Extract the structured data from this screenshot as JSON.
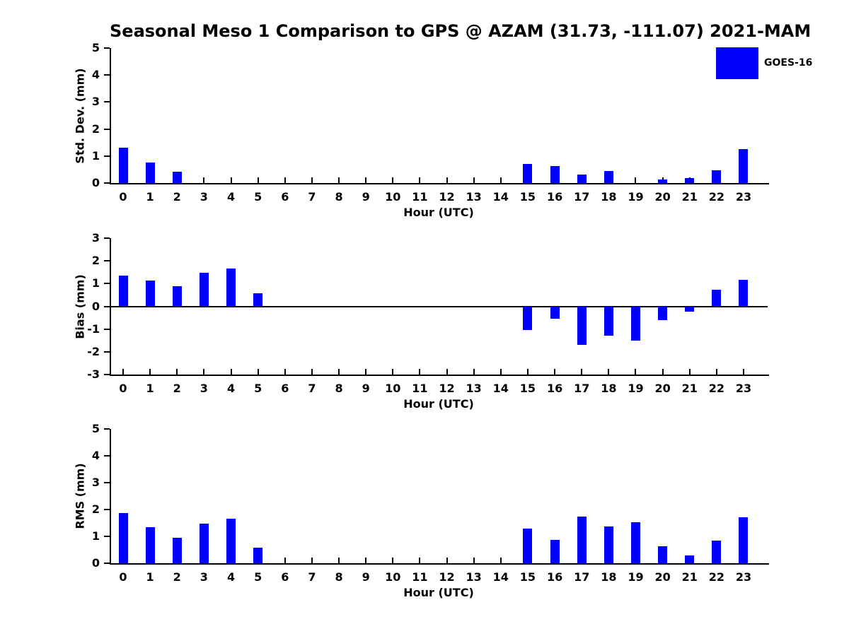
{
  "figure": {
    "title": "Seasonal Meso 1 Comparison to GPS @ AZAM (31.73, -111.07) 2021-MAM",
    "legend": {
      "label": "GOES-16",
      "color": "#0000ff"
    }
  },
  "chart_data": [
    {
      "type": "bar",
      "title": "Seasonal Meso 1 Comparison to GPS @ AZAM (31.73, -111.07) 2021-MAM",
      "ylabel": "Std. Dev. (mm)",
      "xlabel": "Hour (UTC)",
      "ylim": [
        0,
        5
      ],
      "yticks": [
        0,
        1,
        2,
        3,
        4,
        5
      ],
      "grid": false,
      "legend_position": "top-right",
      "categories": [
        0,
        1,
        2,
        3,
        4,
        5,
        6,
        7,
        8,
        9,
        10,
        11,
        12,
        13,
        14,
        15,
        16,
        17,
        18,
        19,
        20,
        21,
        22,
        23
      ],
      "series": [
        {
          "name": "GOES-16",
          "color": "#0000ff",
          "values": [
            1.3,
            0.77,
            0.42,
            0,
            0,
            0,
            0,
            0,
            0,
            0,
            0,
            0,
            0,
            0,
            0,
            0.7,
            0.63,
            0.32,
            0.45,
            0,
            0.12,
            0.18,
            0.48,
            1.25
          ]
        }
      ]
    },
    {
      "type": "bar",
      "ylabel": "Bias (mm)",
      "xlabel": "Hour (UTC)",
      "ylim": [
        -3,
        3
      ],
      "yticks": [
        -3,
        -2,
        -1,
        0,
        1,
        2,
        3
      ],
      "grid": false,
      "categories": [
        0,
        1,
        2,
        3,
        4,
        5,
        6,
        7,
        8,
        9,
        10,
        11,
        12,
        13,
        14,
        15,
        16,
        17,
        18,
        19,
        20,
        21,
        22,
        23
      ],
      "series": [
        {
          "name": "GOES-16",
          "color": "#0000ff",
          "values": [
            1.35,
            1.12,
            0.88,
            1.47,
            1.67,
            0.58,
            0,
            0,
            0,
            0,
            0,
            0,
            0,
            0,
            0,
            -1.05,
            -0.55,
            -1.7,
            -1.29,
            -1.52,
            -0.62,
            -0.22,
            0.72,
            1.18
          ]
        }
      ]
    },
    {
      "type": "bar",
      "ylabel": "RMS (mm)",
      "xlabel": "Hour (UTC)",
      "ylim": [
        0,
        5
      ],
      "yticks": [
        0,
        1,
        2,
        3,
        4,
        5
      ],
      "grid": false,
      "categories": [
        0,
        1,
        2,
        3,
        4,
        5,
        6,
        7,
        8,
        9,
        10,
        11,
        12,
        13,
        14,
        15,
        16,
        17,
        18,
        19,
        20,
        21,
        22,
        23
      ],
      "series": [
        {
          "name": "GOES-16",
          "color": "#0000ff",
          "values": [
            1.87,
            1.35,
            0.95,
            1.48,
            1.66,
            0.57,
            0,
            0,
            0,
            0,
            0,
            0,
            0,
            0,
            0,
            1.3,
            0.87,
            1.75,
            1.37,
            1.52,
            0.63,
            0.3,
            0.85,
            1.7
          ]
        }
      ]
    }
  ]
}
